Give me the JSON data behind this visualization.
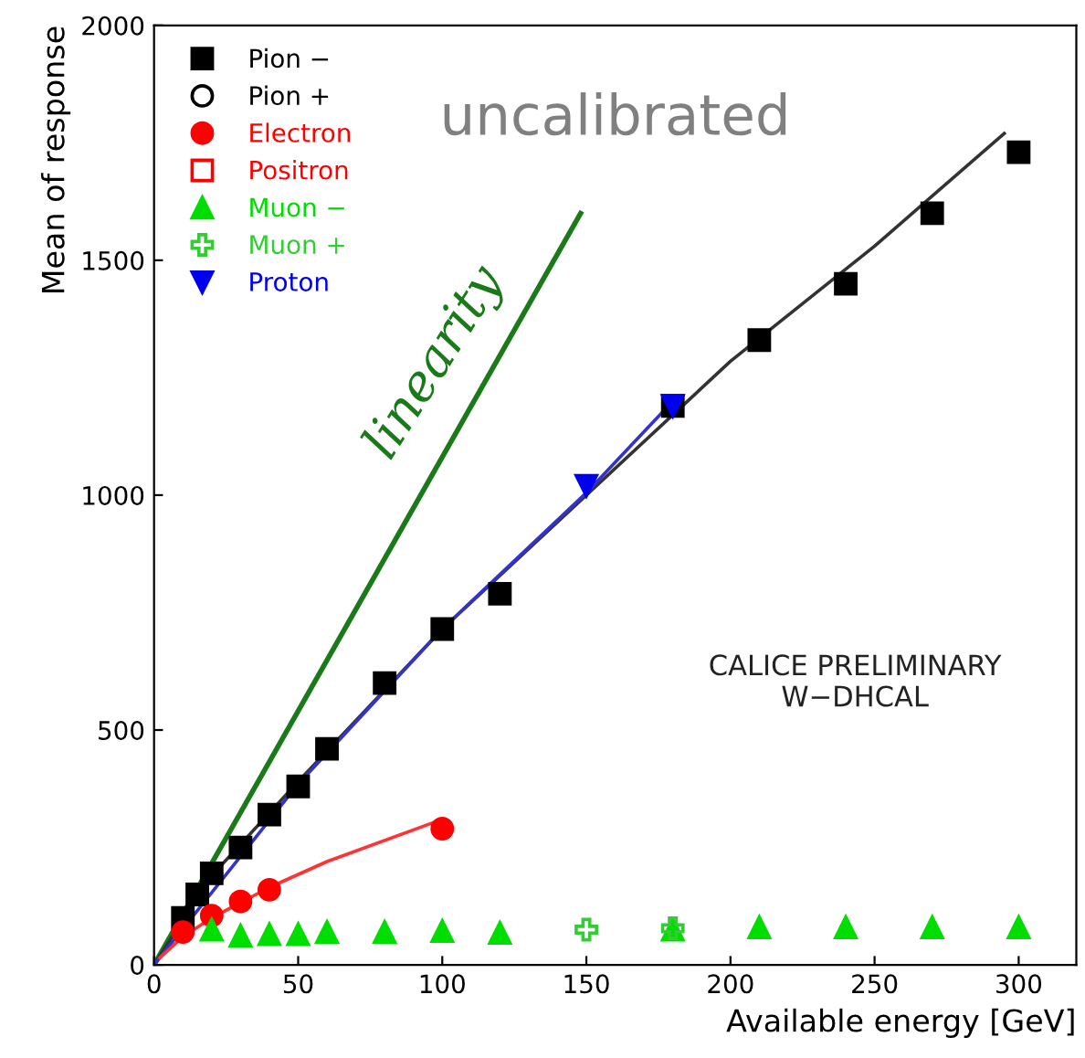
{
  "chart_data": {
    "type": "scatter",
    "xlabel": "Available energy [GeV]",
    "ylabel": "Mean of response",
    "xlim": [
      0,
      320
    ],
    "ylim": [
      0,
      2000
    ],
    "xticks": [
      0,
      50,
      100,
      150,
      200,
      250,
      300
    ],
    "yticks": [
      0,
      500,
      1000,
      1500,
      2000
    ],
    "grid": false,
    "legend": "top left",
    "annotations": [
      "uncalibrated",
      "linearity",
      "CALICE PRELIMINARY\nW−DHCAL"
    ],
    "series": [
      {
        "type": "line",
        "color": "#1a7a1a",
        "x": [
          0,
          148
        ],
        "values": [
          0,
          1600
        ],
        "marker": "none"
      },
      {
        "type": "line",
        "color": "#333333",
        "x": [
          0,
          20,
          50,
          100,
          150,
          200,
          250,
          295
        ],
        "values": [
          0,
          190,
          390,
          715,
          1000,
          1285,
          1530,
          1770
        ],
        "marker": "none"
      },
      {
        "type": "line",
        "color": "#3333cc",
        "x": [
          0,
          50,
          100,
          150,
          180
        ],
        "values": [
          0,
          385,
          715,
          1005,
          1200
        ],
        "marker": "none"
      },
      {
        "type": "line",
        "color": "#ff3333",
        "x": [
          2,
          10,
          20,
          40,
          60,
          100
        ],
        "values": [
          15,
          60,
          100,
          165,
          220,
          310
        ],
        "marker": "none"
      },
      {
        "name": "Pion −",
        "color": "#000000",
        "marker": "square",
        "x": [
          10,
          15,
          20,
          30,
          40,
          50,
          60,
          80,
          100,
          120,
          180,
          210,
          240,
          270,
          300
        ],
        "values": [
          100,
          150,
          195,
          250,
          320,
          380,
          460,
          600,
          715,
          790,
          1190,
          1330,
          1450,
          1600,
          1730
        ]
      },
      {
        "name": "Pion +",
        "color": "#000000",
        "marker": "open circle"
      },
      {
        "name": "Electron",
        "color": "#ff0000",
        "marker": "circle",
        "x": [
          10,
          20,
          30,
          40,
          100
        ],
        "values": [
          70,
          105,
          135,
          160,
          290
        ]
      },
      {
        "name": "Positron",
        "color": "#ff0000",
        "marker": "open square"
      },
      {
        "name": "Muon −",
        "color": "#00dd00",
        "marker": "triangle",
        "x": [
          20,
          30,
          40,
          50,
          60,
          80,
          100,
          120,
          180,
          210,
          240,
          270,
          300
        ],
        "values": [
          75,
          62,
          65,
          65,
          70,
          70,
          72,
          68,
          75,
          80,
          80,
          80,
          80
        ]
      },
      {
        "name": "Muon +",
        "color": "#33cc33",
        "marker": "cross",
        "x": [
          150,
          180
        ],
        "values": [
          75,
          78
        ]
      },
      {
        "name": "Proton",
        "color": "#0000ee",
        "marker": "triangle down",
        "x": [
          150,
          180
        ],
        "values": [
          1020,
          1190
        ]
      }
    ]
  }
}
